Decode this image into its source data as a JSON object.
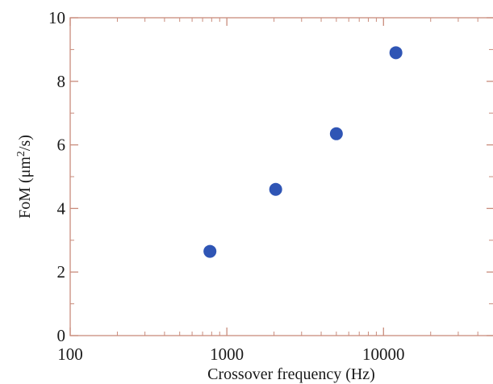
{
  "chart_data": {
    "type": "scatter",
    "title": "",
    "xlabel": "Crossover frequency (Hz)",
    "ylabel": {
      "prefix": "FoM (",
      "unit": "μm",
      "superscript": "2",
      "suffix": "/s)"
    },
    "xscale": "log",
    "xlim": [
      100,
      50000
    ],
    "ylim": [
      0,
      10
    ],
    "x_ticks": [
      100,
      1000,
      10000
    ],
    "x_tick_labels": [
      "100",
      "1000",
      "10000"
    ],
    "y_ticks": [
      0,
      2,
      4,
      6,
      8,
      10
    ],
    "y_tick_labels": [
      "0",
      "2",
      "4",
      "6",
      "8",
      "10"
    ],
    "grid": false,
    "legend": "none",
    "series": [
      {
        "color": "#2f55b5",
        "points": [
          {
            "x": 780,
            "y": 2.65
          },
          {
            "x": 2050,
            "y": 4.6
          },
          {
            "x": 5000,
            "y": 6.35
          },
          {
            "x": 12000,
            "y": 8.9
          }
        ]
      }
    ],
    "frame_color": "#c98c7c",
    "text_color": "#1a1a1a"
  }
}
